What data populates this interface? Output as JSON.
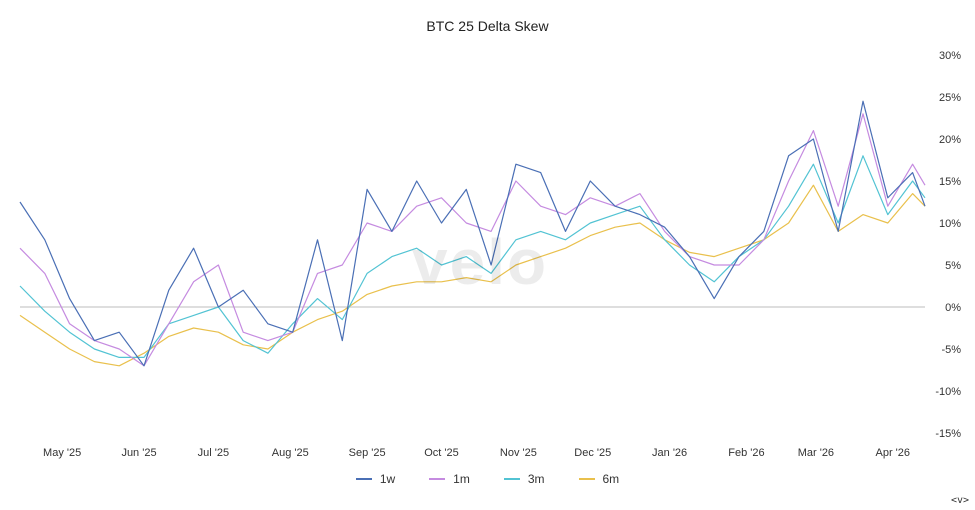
{
  "chart_data": {
    "type": "line",
    "title": "BTC 25 Delta Skew",
    "y_axis": {
      "position": "right",
      "ylim": [
        -15,
        30
      ],
      "ticks": [
        30,
        25,
        20,
        15,
        10,
        5,
        0,
        -5,
        -10,
        -15
      ],
      "tick_labels": [
        "30%",
        "25%",
        "20%",
        "15%",
        "10%",
        "5%",
        "0%",
        "-5%",
        "-10%",
        "-15%"
      ]
    },
    "x_axis": {
      "start": "2025-04-14",
      "end": "2026-04-14",
      "tick_labels": [
        "May '25",
        "Jun '25",
        "Jul '25",
        "Aug '25",
        "Sep '25",
        "Oct '25",
        "Nov '25",
        "Dec '25",
        "Jan '26",
        "Feb '26",
        "Mar '26",
        "Apr '26"
      ],
      "tick_dates": [
        "2025-05-01",
        "2025-06-01",
        "2025-07-01",
        "2025-08-01",
        "2025-09-01",
        "2025-10-01",
        "2025-11-01",
        "2025-12-01",
        "2026-01-01",
        "2026-02-01",
        "2026-03-01",
        "2026-04-01"
      ]
    },
    "zero_line": true,
    "grid": false,
    "legend_placement": "bottom",
    "x": [
      "2025-04-14",
      "2025-04-24",
      "2025-05-04",
      "2025-05-14",
      "2025-05-24",
      "2025-06-03",
      "2025-06-13",
      "2025-06-23",
      "2025-07-03",
      "2025-07-13",
      "2025-07-23",
      "2025-08-02",
      "2025-08-12",
      "2025-08-22",
      "2025-09-01",
      "2025-09-11",
      "2025-09-21",
      "2025-10-01",
      "2025-10-11",
      "2025-10-21",
      "2025-10-31",
      "2025-11-10",
      "2025-11-20",
      "2025-11-30",
      "2025-12-10",
      "2025-12-20",
      "2025-12-30",
      "2026-01-09",
      "2026-01-19",
      "2026-01-29",
      "2026-02-08",
      "2026-02-18",
      "2026-02-28",
      "2026-03-10",
      "2026-03-20",
      "2026-03-30",
      "2026-04-09",
      "2026-04-14"
    ],
    "series": [
      {
        "name": "1w",
        "color": "#4a6fb5",
        "values": [
          12.5,
          8.0,
          1.0,
          -4.0,
          -3.0,
          -7.0,
          2.0,
          7.0,
          0.0,
          2.0,
          -2.0,
          -3.0,
          8.0,
          -4.0,
          14.0,
          9.0,
          15.0,
          10.0,
          14.0,
          5.0,
          17.0,
          16.0,
          9.0,
          15.0,
          12.0,
          11.0,
          9.5,
          6.0,
          1.0,
          6.0,
          9.0,
          18.0,
          20.0,
          9.0,
          24.5,
          13.0,
          16.0,
          12.0
        ]
      },
      {
        "name": "1m",
        "color": "#c58be0",
        "values": [
          7.0,
          4.0,
          -2.0,
          -4.0,
          -5.0,
          -7.0,
          -2.0,
          3.0,
          5.0,
          -3.0,
          -4.0,
          -3.0,
          4.0,
          5.0,
          10.0,
          9.0,
          12.0,
          13.0,
          10.0,
          9.0,
          15.0,
          12.0,
          11.0,
          13.0,
          12.0,
          13.5,
          9.0,
          6.0,
          5.0,
          5.0,
          8.0,
          15.0,
          21.0,
          12.0,
          23.0,
          12.0,
          17.0,
          14.5
        ]
      },
      {
        "name": "3m",
        "color": "#52c3d3",
        "values": [
          2.5,
          -0.5,
          -3.0,
          -5.0,
          -6.0,
          -6.0,
          -2.0,
          -1.0,
          0.0,
          -4.0,
          -5.5,
          -2.0,
          1.0,
          -1.5,
          4.0,
          6.0,
          7.0,
          5.0,
          6.0,
          4.0,
          8.0,
          9.0,
          8.0,
          10.0,
          11.0,
          12.0,
          8.0,
          5.0,
          3.0,
          6.0,
          8.0,
          12.0,
          17.0,
          10.0,
          18.0,
          11.0,
          15.0,
          13.0
        ]
      },
      {
        "name": "6m",
        "color": "#e9c04c",
        "values": [
          -1.0,
          -3.0,
          -5.0,
          -6.5,
          -7.0,
          -5.5,
          -3.5,
          -2.5,
          -3.0,
          -4.5,
          -5.0,
          -3.0,
          -1.5,
          -0.5,
          1.5,
          2.5,
          3.0,
          3.0,
          3.5,
          3.0,
          5.0,
          6.0,
          7.0,
          8.5,
          9.5,
          10.0,
          8.0,
          6.5,
          6.0,
          7.0,
          8.0,
          10.0,
          14.5,
          9.0,
          11.0,
          10.0,
          13.5,
          12.0
        ]
      }
    ]
  },
  "watermark_text": "velo",
  "navigator_glyph": "<v>"
}
